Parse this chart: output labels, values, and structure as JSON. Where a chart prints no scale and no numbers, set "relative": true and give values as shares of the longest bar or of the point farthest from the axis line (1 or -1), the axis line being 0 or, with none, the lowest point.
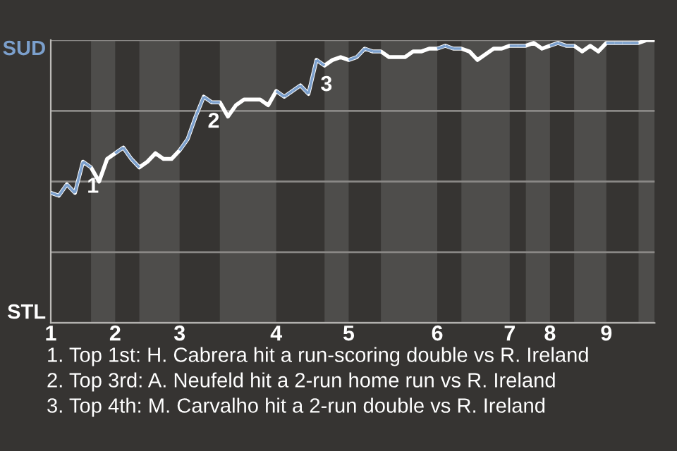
{
  "chart_data": {
    "type": "line",
    "relative": true,
    "categories": [
      "1",
      null,
      null,
      null,
      null,
      null,
      null,
      null,
      "2",
      null,
      null,
      null,
      null,
      null,
      null,
      null,
      "3",
      null,
      null,
      null,
      null,
      null,
      null,
      null,
      null,
      null,
      null,
      null,
      "4",
      null,
      null,
      null,
      null,
      null,
      null,
      null,
      null,
      "5",
      null,
      null,
      null,
      null,
      null,
      null,
      null,
      null,
      null,
      null,
      "6",
      null,
      null,
      null,
      null,
      null,
      null,
      null,
      null,
      "7",
      null,
      null,
      null,
      null,
      "8",
      null,
      null,
      null,
      null,
      null,
      null,
      "9",
      null,
      null,
      null,
      null,
      null,
      null
    ],
    "legend": false,
    "marker": "none",
    "line_style": "solid",
    "grid": "y",
    "series": [
      {
        "color": "#ffffff",
        "values": [
          0.46,
          0.45,
          0.49,
          0.46,
          0.57,
          0.55,
          0.5,
          0.58,
          0.6,
          0.62,
          0.58,
          0.55,
          0.57,
          0.6,
          0.58,
          0.58,
          0.61,
          0.65,
          0.73,
          0.8,
          0.78,
          0.78,
          0.73,
          0.77,
          0.79,
          0.79,
          0.79,
          0.77,
          0.82,
          0.8,
          0.82,
          0.84,
          0.81,
          0.93,
          0.91,
          0.93,
          0.94,
          0.93,
          0.94,
          0.97,
          0.96,
          0.96,
          0.94,
          0.94,
          0.94,
          0.96,
          0.96,
          0.97,
          0.97,
          0.98,
          0.97,
          0.97,
          0.96,
          0.93,
          0.95,
          0.97,
          0.97,
          0.98,
          0.98,
          0.98,
          0.99,
          0.97,
          0.98,
          0.99,
          0.98,
          0.98,
          0.96,
          0.98,
          0.96,
          0.99,
          0.99,
          0.99,
          0.99,
          0.99,
          1.0,
          1.0
        ],
        "colors": [
          "#7b9fcc",
          "#7b9fcc",
          "#7b9fcc",
          "#7b9fcc",
          "#7b9fcc",
          "#7b9fcc",
          "#ffffff",
          "#ffffff",
          "#ffffff",
          "#7b9fcc",
          "#7b9fcc",
          "#7b9fcc",
          "#ffffff",
          "#ffffff",
          "#ffffff",
          "#ffffff",
          "#ffffff",
          "#7b9fcc",
          "#7b9fcc",
          "#7b9fcc",
          "#7b9fcc",
          "#7b9fcc",
          "#ffffff",
          "#ffffff",
          "#ffffff",
          "#ffffff",
          "#ffffff",
          "#ffffff",
          "#ffffff",
          "#7b9fcc",
          "#7b9fcc",
          "#7b9fcc",
          "#7b9fcc",
          "#7b9fcc",
          "#7b9fcc",
          "#ffffff",
          "#ffffff",
          "#ffffff",
          "#7b9fcc",
          "#7b9fcc",
          "#7b9fcc",
          "#7b9fcc",
          "#ffffff",
          "#ffffff",
          "#ffffff",
          "#ffffff",
          "#ffffff",
          "#ffffff",
          "#ffffff",
          "#7b9fcc",
          "#7b9fcc",
          "#7b9fcc",
          "#ffffff",
          "#ffffff",
          "#ffffff",
          "#ffffff",
          "#ffffff",
          "#ffffff",
          "#7b9fcc",
          "#7b9fcc",
          "#ffffff",
          "#ffffff",
          "#ffffff",
          "#7b9fcc",
          "#7b9fcc",
          "#7b9fcc",
          "#ffffff",
          "#ffffff",
          "#ffffff",
          "#ffffff",
          "#7b9fcc",
          "#7b9fcc",
          "#7b9fcc",
          "#7b9fcc",
          "#ffffff",
          "#ffffff"
        ]
      }
    ],
    "annotations": [
      {
        "text": "SUD"
      },
      {
        "text": "STL"
      },
      {
        "text": "1",
        "y": 0.57
      },
      {
        "text": "2",
        "y": 0.8
      },
      {
        "text": "3",
        "y": 0.93
      },
      "1. Top 1st: H. Cabrera hit a run-scoring double vs R. Ireland",
      "2. Top 3rd: A. Neufeld hit a 2-run home run vs R. Ireland",
      "3. Top 4th: M. Carvalho hit a 2-run double vs R. Ireland"
    ]
  }
}
